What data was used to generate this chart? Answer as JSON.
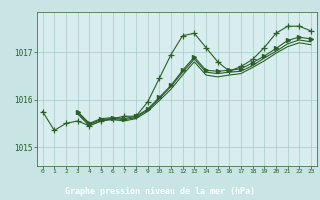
{
  "title": "Graphe pression niveau de la mer (hPa)",
  "background_color": "#c8e4e4",
  "plot_bg_color": "#d8eeee",
  "grid_color": "#a8caca",
  "line_color": "#2a5e2a",
  "xlabel_bg": "#3a6e3a",
  "xlabel_color": "#ffffff",
  "xlim": [
    -0.5,
    23.5
  ],
  "ylim": [
    1014.6,
    1017.85
  ],
  "yticks": [
    1015,
    1016,
    1017
  ],
  "xticks": [
    0,
    1,
    2,
    3,
    4,
    5,
    6,
    7,
    8,
    9,
    10,
    11,
    12,
    13,
    14,
    15,
    16,
    17,
    18,
    19,
    20,
    21,
    22,
    23
  ],
  "series": [
    {
      "x": [
        0,
        1,
        2,
        3,
        4,
        5,
        6,
        7,
        8,
        9,
        10,
        11,
        12,
        13,
        14,
        15,
        16,
        17,
        18,
        19,
        20,
        21,
        22,
        23
      ],
      "y": [
        1015.75,
        1015.35,
        1015.5,
        1015.55,
        1015.45,
        1015.55,
        1015.6,
        1015.65,
        1015.65,
        1015.95,
        1016.45,
        1016.95,
        1017.35,
        1017.4,
        1017.1,
        1016.8,
        1016.6,
        1016.7,
        1016.85,
        1017.1,
        1017.4,
        1017.55,
        1017.55,
        1017.45
      ],
      "marker": "+",
      "markersize": 4
    },
    {
      "x": [
        3,
        4,
        5,
        6,
        7,
        8,
        9,
        10,
        11,
        12,
        13,
        14,
        15,
        16,
        17,
        18,
        19,
        20,
        21,
        22,
        23
      ],
      "y": [
        1015.75,
        1015.5,
        1015.6,
        1015.62,
        1015.6,
        1015.65,
        1015.8,
        1016.05,
        1016.3,
        1016.62,
        1016.9,
        1016.62,
        1016.6,
        1016.62,
        1016.65,
        1016.78,
        1016.92,
        1017.08,
        1017.25,
        1017.32,
        1017.28
      ],
      "marker": ">",
      "markersize": 3
    },
    {
      "x": [
        3,
        4,
        5,
        6,
        7,
        8,
        9,
        10,
        11,
        12,
        13,
        14,
        15,
        16,
        17,
        18,
        19,
        20,
        21,
        22,
        23
      ],
      "y": [
        1015.72,
        1015.48,
        1015.58,
        1015.6,
        1015.58,
        1015.62,
        1015.78,
        1016.02,
        1016.28,
        1016.58,
        1016.86,
        1016.58,
        1016.55,
        1016.58,
        1016.6,
        1016.72,
        1016.88,
        1017.02,
        1017.18,
        1017.26,
        1017.22
      ],
      "marker": null,
      "markersize": 0
    },
    {
      "x": [
        3,
        4,
        5,
        6,
        7,
        8,
        9,
        10,
        11,
        12,
        13,
        14,
        15,
        16,
        17,
        18,
        19,
        20,
        21,
        22,
        23
      ],
      "y": [
        1015.7,
        1015.45,
        1015.55,
        1015.58,
        1015.55,
        1015.6,
        1015.75,
        1015.98,
        1016.22,
        1016.52,
        1016.8,
        1016.52,
        1016.48,
        1016.52,
        1016.55,
        1016.68,
        1016.82,
        1016.98,
        1017.12,
        1017.2,
        1017.16
      ],
      "marker": null,
      "markersize": 0
    }
  ]
}
